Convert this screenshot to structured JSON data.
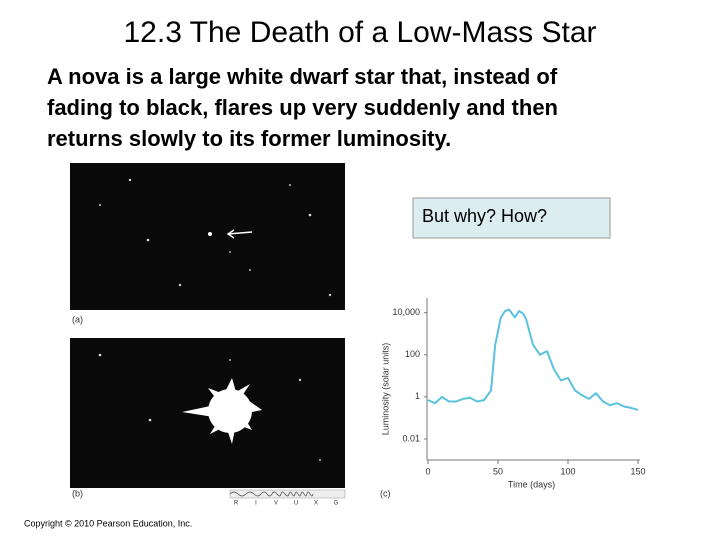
{
  "slide": {
    "title": "12.3 The Death of a Low-Mass Star",
    "body_lines": [
      "A nova is a large white dwarf star that, instead of",
      "fading to black, flares up very suddenly and then",
      "returns slowly to its former luminosity."
    ],
    "callout": "But why?  How?",
    "panel_labels": [
      "(a)",
      "(b)",
      "(c)"
    ],
    "spectrum_letters": [
      "R",
      "I",
      "V",
      "U",
      "X",
      "G"
    ],
    "copyright": "Copyright © 2010 Pearson Education, Inc."
  },
  "chart_data": {
    "type": "line",
    "xlabel": "Time (days)",
    "ylabel": "Luminosity (solar units)",
    "x": [
      0,
      5,
      10,
      15,
      20,
      25,
      30,
      35,
      40,
      45,
      48,
      52,
      55,
      58,
      62,
      65,
      68,
      70,
      75,
      80,
      85,
      90,
      95,
      100,
      105,
      110,
      115,
      120,
      125,
      130,
      135,
      140,
      145,
      150
    ],
    "values": [
      0.7,
      0.5,
      1,
      0.6,
      0.6,
      0.8,
      0.9,
      0.6,
      0.7,
      2,
      300,
      5800,
      12000,
      14000,
      6000,
      12000,
      9000,
      5000,
      300,
      100,
      150,
      20,
      6,
      8,
      2,
      1.2,
      0.8,
      1.5,
      0.6,
      0.4,
      0.5,
      0.35,
      0.3,
      0.24
    ],
    "color": "#5bc2de",
    "xlim": [
      0,
      155
    ],
    "ylim": [
      0.001,
      50000
    ],
    "ylog": true,
    "xticks": [
      0,
      50,
      100,
      150
    ],
    "yticks": [
      {
        "value": 10000,
        "label": "10,000"
      },
      100,
      1,
      0.01
    ]
  }
}
